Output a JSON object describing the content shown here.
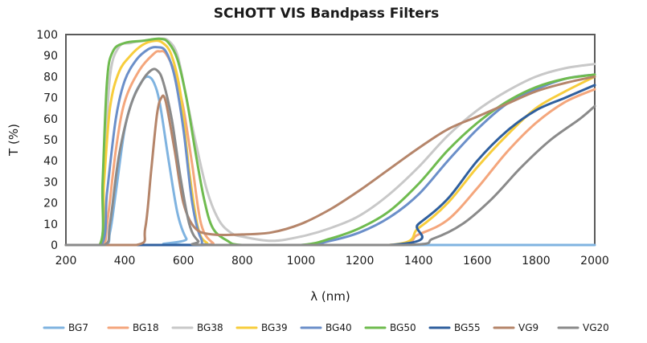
{
  "chart_data": {
    "type": "line",
    "title": "SCHOTT VIS Bandpass Filters",
    "xlabel": "λ (nm)",
    "ylabel": "T (%)",
    "xlim": [
      200,
      2000
    ],
    "ylim": [
      0,
      100
    ],
    "x_ticks": [
      200,
      400,
      600,
      800,
      1000,
      1200,
      1400,
      1600,
      1800,
      2000
    ],
    "y_ticks": [
      0,
      10,
      20,
      30,
      40,
      50,
      60,
      70,
      80,
      90,
      100
    ],
    "grid": false,
    "legend_position": "bottom",
    "series": [
      {
        "name": "BG7",
        "color": "#7fb3e0",
        "points": [
          [
            200,
            0
          ],
          [
            330,
            0
          ],
          [
            350,
            6
          ],
          [
            370,
            25
          ],
          [
            400,
            55
          ],
          [
            430,
            70
          ],
          [
            460,
            78
          ],
          [
            480,
            80
          ],
          [
            500,
            77
          ],
          [
            520,
            67
          ],
          [
            550,
            40
          ],
          [
            580,
            15
          ],
          [
            610,
            3
          ],
          [
            640,
            0
          ],
          [
            2000,
            0
          ]
        ]
      },
      {
        "name": "BG18",
        "color": "#f4a67c",
        "points": [
          [
            200,
            0
          ],
          [
            320,
            0
          ],
          [
            340,
            10
          ],
          [
            370,
            45
          ],
          [
            400,
            68
          ],
          [
            450,
            83
          ],
          [
            500,
            91
          ],
          [
            520,
            92
          ],
          [
            540,
            91
          ],
          [
            570,
            82
          ],
          [
            600,
            65
          ],
          [
            630,
            38
          ],
          [
            660,
            10
          ],
          [
            700,
            1
          ],
          [
            740,
            0
          ],
          [
            1300,
            0
          ],
          [
            1400,
            5
          ],
          [
            1500,
            12
          ],
          [
            1600,
            27
          ],
          [
            1700,
            44
          ],
          [
            1800,
            58
          ],
          [
            1900,
            68
          ],
          [
            2000,
            74
          ]
        ]
      },
      {
        "name": "BG38",
        "color": "#c8c8c8",
        "points": [
          [
            200,
            0
          ],
          [
            315,
            0
          ],
          [
            330,
            35
          ],
          [
            350,
            80
          ],
          [
            380,
            94
          ],
          [
            420,
            96
          ],
          [
            460,
            97
          ],
          [
            520,
            98
          ],
          [
            550,
            97
          ],
          [
            580,
            90
          ],
          [
            610,
            70
          ],
          [
            640,
            50
          ],
          [
            680,
            26
          ],
          [
            720,
            12
          ],
          [
            760,
            6
          ],
          [
            800,
            4
          ],
          [
            900,
            2
          ],
          [
            1000,
            4
          ],
          [
            1100,
            8
          ],
          [
            1200,
            14
          ],
          [
            1300,
            24
          ],
          [
            1400,
            37
          ],
          [
            1500,
            52
          ],
          [
            1600,
            64
          ],
          [
            1700,
            73
          ],
          [
            1800,
            80
          ],
          [
            1900,
            84
          ],
          [
            2000,
            86
          ]
        ]
      },
      {
        "name": "BG39",
        "color": "#f7cd3c",
        "points": [
          [
            200,
            0
          ],
          [
            315,
            0
          ],
          [
            330,
            30
          ],
          [
            350,
            65
          ],
          [
            380,
            82
          ],
          [
            420,
            90
          ],
          [
            460,
            95
          ],
          [
            500,
            97
          ],
          [
            530,
            96
          ],
          [
            560,
            90
          ],
          [
            590,
            72
          ],
          [
            620,
            35
          ],
          [
            650,
            8
          ],
          [
            680,
            1
          ],
          [
            720,
            0
          ],
          [
            1300,
            0
          ],
          [
            1400,
            8
          ],
          [
            1500,
            20
          ],
          [
            1600,
            37
          ],
          [
            1700,
            52
          ],
          [
            1800,
            65
          ],
          [
            1900,
            73
          ],
          [
            2000,
            80
          ]
        ]
      },
      {
        "name": "BG40",
        "color": "#6b8fc9",
        "points": [
          [
            200,
            0
          ],
          [
            320,
            0
          ],
          [
            340,
            25
          ],
          [
            370,
            60
          ],
          [
            400,
            78
          ],
          [
            440,
            88
          ],
          [
            480,
            93
          ],
          [
            510,
            94
          ],
          [
            540,
            92
          ],
          [
            570,
            80
          ],
          [
            600,
            55
          ],
          [
            630,
            20
          ],
          [
            660,
            3
          ],
          [
            700,
            0
          ],
          [
            1000,
            0
          ],
          [
            1100,
            2
          ],
          [
            1200,
            6
          ],
          [
            1300,
            13
          ],
          [
            1400,
            24
          ],
          [
            1500,
            40
          ],
          [
            1600,
            55
          ],
          [
            1700,
            67
          ],
          [
            1800,
            74
          ],
          [
            1900,
            79
          ],
          [
            2000,
            81
          ]
        ]
      },
      {
        "name": "BG50",
        "color": "#6fbb4f",
        "points": [
          [
            200,
            0
          ],
          [
            315,
            0
          ],
          [
            325,
            30
          ],
          [
            340,
            78
          ],
          [
            360,
            92
          ],
          [
            400,
            96
          ],
          [
            460,
            97
          ],
          [
            520,
            98
          ],
          [
            550,
            96
          ],
          [
            580,
            88
          ],
          [
            610,
            70
          ],
          [
            640,
            45
          ],
          [
            670,
            22
          ],
          [
            700,
            8
          ],
          [
            750,
            2
          ],
          [
            800,
            0
          ],
          [
            1000,
            0
          ],
          [
            1100,
            3
          ],
          [
            1200,
            8
          ],
          [
            1300,
            16
          ],
          [
            1400,
            29
          ],
          [
            1500,
            45
          ],
          [
            1600,
            58
          ],
          [
            1700,
            68
          ],
          [
            1800,
            75
          ],
          [
            1900,
            79
          ],
          [
            2000,
            81
          ]
        ]
      },
      {
        "name": "BG55",
        "color": "#2f5f9e",
        "points": [
          [
            200,
            0
          ],
          [
            1300,
            0
          ],
          [
            1400,
            10
          ],
          [
            1500,
            22
          ],
          [
            1600,
            40
          ],
          [
            1700,
            54
          ],
          [
            1800,
            64
          ],
          [
            1900,
            70
          ],
          [
            2000,
            76
          ]
        ]
      },
      {
        "name": "VG9",
        "color": "#b5856a",
        "points": [
          [
            200,
            0
          ],
          [
            440,
            0
          ],
          [
            470,
            8
          ],
          [
            490,
            35
          ],
          [
            510,
            62
          ],
          [
            525,
            70
          ],
          [
            540,
            68
          ],
          [
            570,
            45
          ],
          [
            600,
            20
          ],
          [
            640,
            8
          ],
          [
            700,
            5
          ],
          [
            800,
            5
          ],
          [
            900,
            6
          ],
          [
            1000,
            10
          ],
          [
            1100,
            17
          ],
          [
            1200,
            26
          ],
          [
            1300,
            36
          ],
          [
            1400,
            46
          ],
          [
            1500,
            55
          ],
          [
            1600,
            61
          ],
          [
            1700,
            67
          ],
          [
            1800,
            73
          ],
          [
            1900,
            77
          ],
          [
            2000,
            80
          ]
        ]
      },
      {
        "name": "VG20",
        "color": "#8a8a8a",
        "points": [
          [
            200,
            0
          ],
          [
            330,
            0
          ],
          [
            350,
            10
          ],
          [
            380,
            42
          ],
          [
            420,
            66
          ],
          [
            460,
            78
          ],
          [
            490,
            83
          ],
          [
            510,
            83
          ],
          [
            530,
            78
          ],
          [
            560,
            60
          ],
          [
            590,
            32
          ],
          [
            620,
            10
          ],
          [
            650,
            2
          ],
          [
            690,
            0
          ],
          [
            1350,
            0
          ],
          [
            1450,
            3
          ],
          [
            1550,
            10
          ],
          [
            1650,
            22
          ],
          [
            1750,
            37
          ],
          [
            1850,
            50
          ],
          [
            1950,
            60
          ],
          [
            2000,
            66
          ]
        ]
      }
    ]
  }
}
